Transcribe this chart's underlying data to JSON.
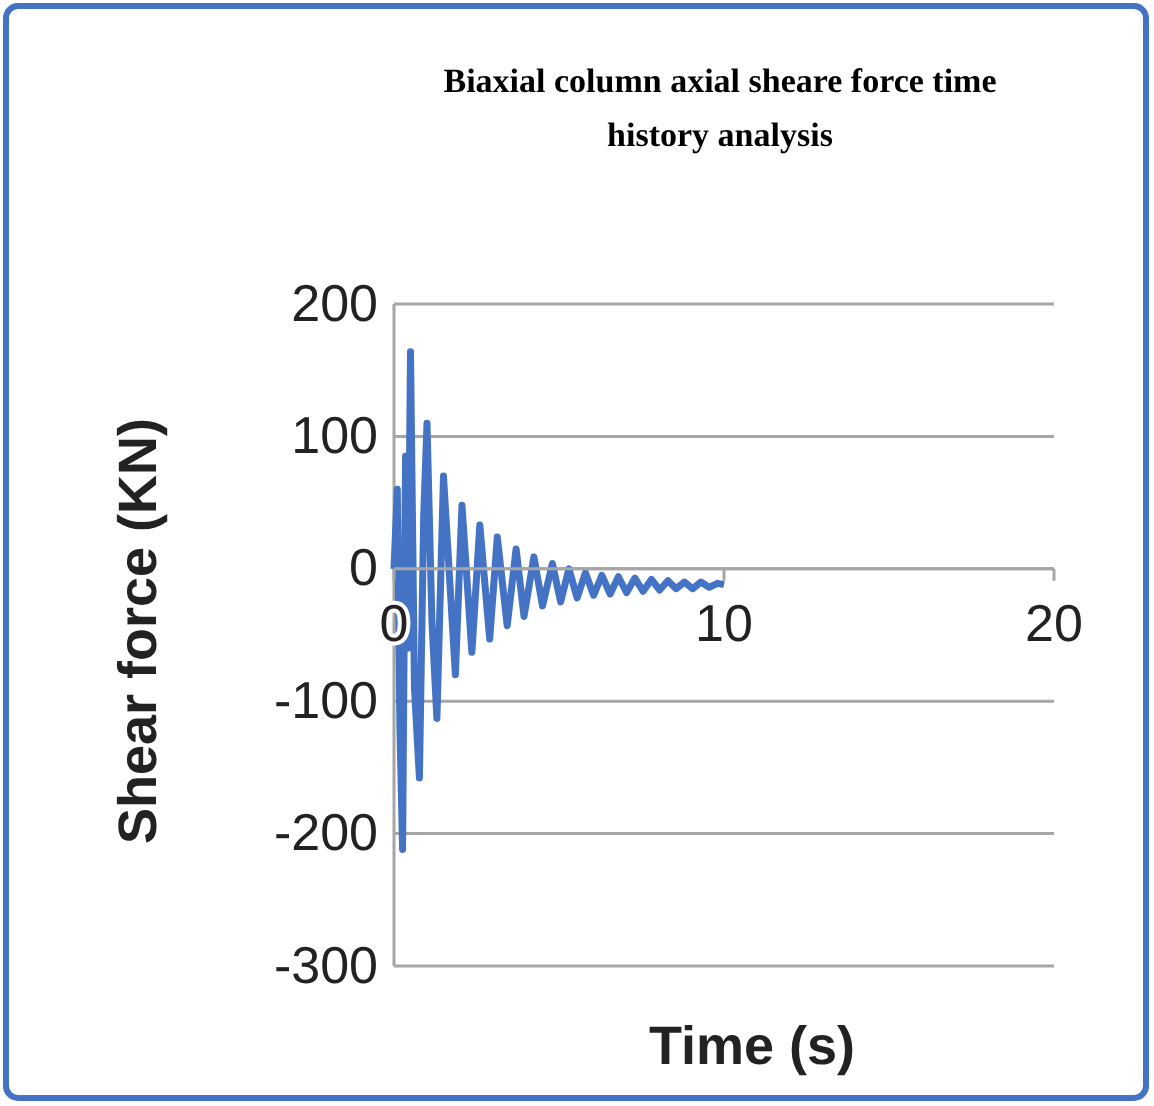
{
  "chart_data": {
    "type": "line",
    "title": "Biaxial column axial sheare force time history analysis",
    "xlabel": "Time (s)",
    "ylabel": "Shear force (KN)",
    "xlim": [
      0,
      20
    ],
    "xticks": [
      0,
      10,
      20
    ],
    "ylim": [
      -300,
      200
    ],
    "yticks": [
      -300,
      -200,
      -100,
      0,
      100,
      200
    ],
    "grid": "y",
    "marker": "none",
    "line_style": "solid",
    "series": [
      {
        "color": "#4472c4",
        "x": [
          0,
          0.1,
          0.18,
          0.26,
          0.35,
          0.42,
          0.5,
          0.62,
          0.77,
          0.9,
          1.0,
          1.15,
          1.3,
          1.5,
          1.86,
          2.06,
          2.36,
          2.6,
          2.9,
          3.13,
          3.43,
          3.7,
          3.94,
          4.24,
          4.5,
          4.8,
          5.05,
          5.3,
          5.55,
          5.8,
          6.05,
          6.3,
          6.55,
          6.8,
          7.05,
          7.3,
          7.55,
          7.8,
          8.05,
          8.3,
          8.55,
          8.8,
          9.05,
          9.3,
          9.55,
          9.8,
          10
        ],
        "values": [
          0,
          60,
          -120,
          -212,
          85,
          -60,
          164,
          -90,
          -158,
          40,
          110,
          -40,
          -113,
          70,
          -80,
          48,
          -63,
          33,
          -53,
          24,
          -43,
          15,
          -36,
          9,
          -28,
          4,
          -25,
          0,
          -22,
          -3,
          -20,
          -5,
          -19,
          -6,
          -18,
          -7,
          -17,
          -8,
          -16,
          -9,
          -15,
          -10,
          -15,
          -10,
          -14,
          -11,
          -12
        ]
      }
    ]
  }
}
